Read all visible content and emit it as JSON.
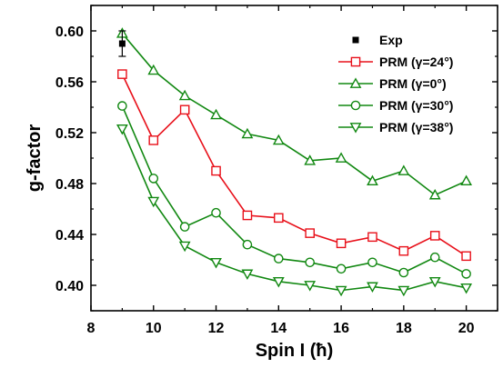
{
  "chart_data": {
    "type": "line",
    "xlabel": "Spin I (ħ)",
    "ylabel": "g-factor",
    "xlim": [
      8,
      21
    ],
    "ylim": [
      0.38,
      0.62
    ],
    "xticks": [
      8,
      10,
      12,
      14,
      16,
      18,
      20
    ],
    "yticks": [
      0.4,
      0.44,
      0.48,
      0.52,
      0.56,
      0.6
    ],
    "xtick_labels": [
      "8",
      "10",
      "12",
      "14",
      "16",
      "18",
      "20"
    ],
    "ytick_labels": [
      "0.40",
      "0.44",
      "0.48",
      "0.52",
      "0.56",
      "0.60"
    ],
    "grid": false,
    "legend_position": "top-right",
    "experiment": {
      "name": "Exp",
      "x": 9,
      "y": 0.59,
      "error": 0.01,
      "color": "#000000",
      "marker": "square-filled"
    },
    "series": [
      {
        "name": "PRM (γ=24°)",
        "color": "#e8101a",
        "marker": "square",
        "x": [
          9,
          10,
          11,
          12,
          13,
          14,
          15,
          16,
          17,
          18,
          19,
          20
        ],
        "values": [
          0.566,
          0.514,
          0.538,
          0.49,
          0.455,
          0.453,
          0.441,
          0.433,
          0.438,
          0.427,
          0.439,
          0.423
        ]
      },
      {
        "name": "PRM (γ=0°)",
        "color": "#118811",
        "marker": "triangle-up",
        "x": [
          9,
          10,
          11,
          12,
          13,
          14,
          15,
          16,
          17,
          18,
          19,
          20
        ],
        "values": [
          0.598,
          0.569,
          0.549,
          0.534,
          0.519,
          0.514,
          0.498,
          0.5,
          0.482,
          0.49,
          0.471,
          0.482
        ]
      },
      {
        "name": "PRM (γ=30°)",
        "color": "#118811",
        "marker": "circle",
        "x": [
          9,
          10,
          11,
          12,
          13,
          14,
          15,
          16,
          17,
          18,
          19,
          20
        ],
        "values": [
          0.541,
          0.484,
          0.446,
          0.457,
          0.432,
          0.421,
          0.418,
          0.413,
          0.418,
          0.41,
          0.422,
          0.409
        ]
      },
      {
        "name": "PRM (γ=38°)",
        "color": "#118811",
        "marker": "triangle-down",
        "x": [
          9,
          10,
          11,
          12,
          13,
          14,
          15,
          16,
          17,
          18,
          19,
          20
        ],
        "values": [
          0.523,
          0.466,
          0.431,
          0.418,
          0.409,
          0.403,
          0.4,
          0.396,
          0.399,
          0.396,
          0.403,
          0.398
        ]
      }
    ]
  }
}
